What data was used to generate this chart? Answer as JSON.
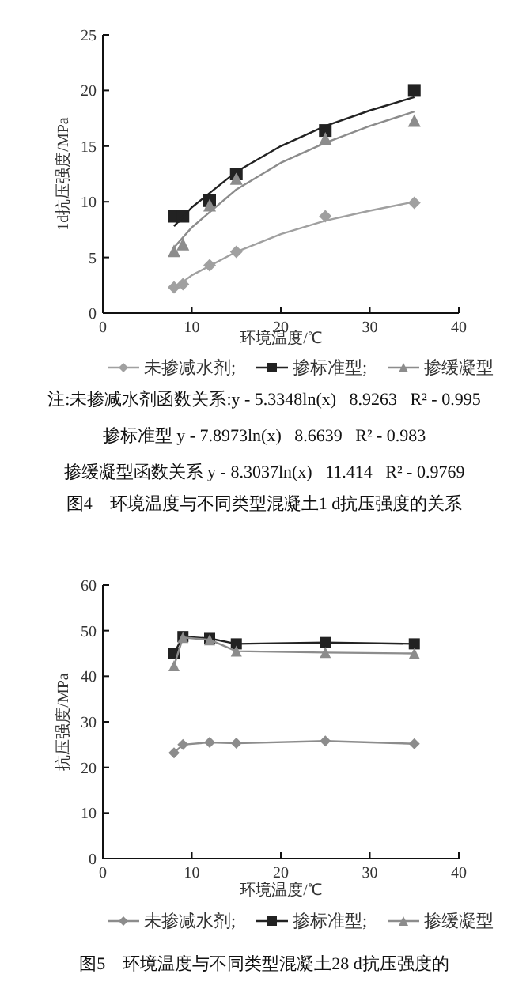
{
  "chart_data": [
    {
      "type": "scatter",
      "xlabel": "环境温度/℃",
      "ylabel": "1d抗压强度/MPa",
      "title": "图4　环境温度与不同类型混凝土1 d抗压强度的关系",
      "annotations": [
        "注:未掺减水剂函数关系:y - 5.3348ln(x)   8.9263   R² - 0.995",
        "掺标准型 y - 7.8973ln(x)   8.6639   R² - 0.983",
        "掺缓凝型函数关系 y - 8.3037ln(x)   11.414   R² - 0.9769"
      ],
      "x": [
        8,
        9,
        12,
        15,
        25,
        35
      ],
      "xlim": [
        0,
        40
      ],
      "ylim": [
        0,
        25
      ],
      "xticks": [
        0,
        10,
        20,
        30,
        40
      ],
      "yticks": [
        0,
        5,
        10,
        15,
        20,
        25
      ],
      "grid": false,
      "legend": "bottom",
      "line_style": "solid",
      "series": [
        {
          "name": "未掺减水剂;",
          "color": "#a0a0a0",
          "marker": "diamond",
          "values": [
            2.3,
            2.6,
            4.3,
            5.5,
            8.7,
            9.9
          ]
        },
        {
          "name": "掺标准型;",
          "color": "#222222",
          "marker": "square",
          "values": [
            8.7,
            8.7,
            10.1,
            12.5,
            16.4,
            20.0
          ]
        },
        {
          "name": "掺缓凝型",
          "color": "#8c8c8c",
          "marker": "triangle",
          "values": [
            5.6,
            6.2,
            9.7,
            12.1,
            15.7,
            17.3
          ]
        },
        {
          "type": "line",
          "color": "#a0a0a0",
          "marker": "none",
          "x": [
            8,
            10,
            15,
            20,
            25,
            30,
            35
          ],
          "values": [
            2.2,
            3.4,
            5.5,
            7.1,
            8.3,
            9.2,
            10.0
          ]
        },
        {
          "type": "line",
          "color": "#222222",
          "marker": "none",
          "x": [
            8,
            10,
            15,
            20,
            25,
            30,
            35
          ],
          "values": [
            7.8,
            9.5,
            12.7,
            15.0,
            16.8,
            18.2,
            19.4
          ]
        },
        {
          "type": "line",
          "color": "#8c8c8c",
          "marker": "none",
          "x": [
            8,
            10,
            15,
            20,
            25,
            30,
            35
          ],
          "values": [
            5.9,
            7.7,
            11.1,
            13.5,
            15.3,
            16.8,
            18.1
          ]
        }
      ]
    },
    {
      "type": "line",
      "xlabel": "环境温度/℃",
      "ylabel": "抗压强度/MPa",
      "title": "图5　环境温度与不同类型混凝土28 d抗压强度的",
      "x": [
        8,
        9,
        12,
        15,
        25,
        35
      ],
      "xlim": [
        0,
        40
      ],
      "ylim": [
        0,
        60
      ],
      "xticks": [
        0,
        10,
        20,
        30,
        40
      ],
      "yticks": [
        0,
        10,
        20,
        30,
        40,
        50,
        60
      ],
      "grid": false,
      "legend": "bottom",
      "line_style": "solid",
      "series": [
        {
          "name": "未掺减水剂;",
          "color": "#8c8c8c",
          "marker": "diamond",
          "values": [
            23.2,
            25.0,
            25.5,
            25.3,
            25.8,
            25.2
          ]
        },
        {
          "name": "掺标准型;",
          "color": "#222222",
          "marker": "square",
          "values": [
            45.0,
            48.7,
            48.3,
            47.1,
            47.4,
            47.1
          ]
        },
        {
          "name": "掺缓凝型",
          "color": "#8c8c8c",
          "marker": "triangle",
          "values": [
            42.3,
            48.5,
            48.0,
            45.5,
            45.2,
            45.0
          ]
        }
      ]
    }
  ]
}
